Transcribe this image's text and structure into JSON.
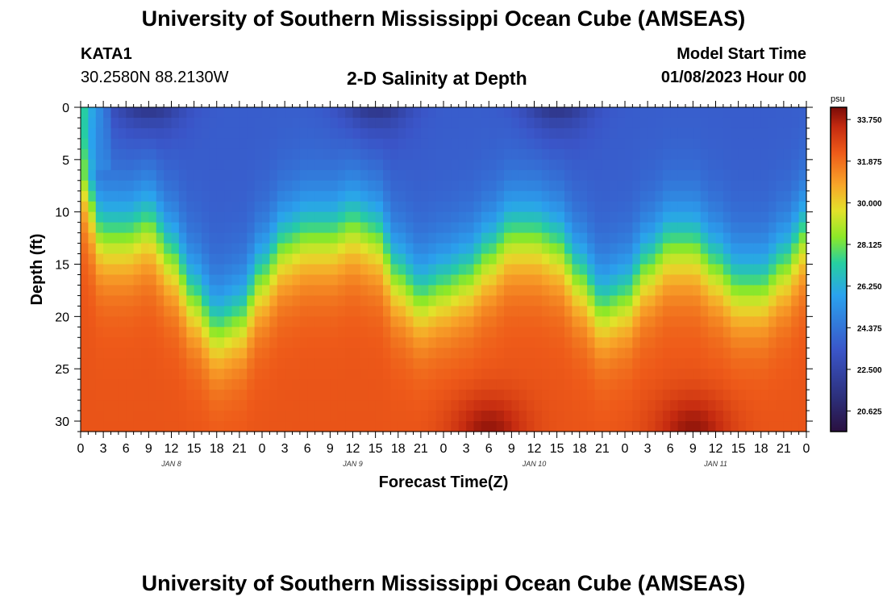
{
  "page": {
    "title": "University of Southern Mississippi Ocean Cube (AMSEAS)",
    "title_repeat": "University of Southern Mississippi Ocean Cube (AMSEAS)",
    "station": "KATA1",
    "coordinates": "30.2580N  88.2130W",
    "subtitle": "2-D Salinity at Depth",
    "model_start_label": "Model Start Time",
    "model_start_value": "01/08/2023 Hour 00"
  },
  "chart_data": {
    "type": "heatmap",
    "title": "2-D Salinity at Depth",
    "xlabel": "Forecast Time(Z)",
    "ylabel": "Depth (ft)",
    "x_range_hours": [
      0,
      96
    ],
    "y_range_ft": [
      0,
      31
    ],
    "x_tick_labels": [
      "0",
      "3",
      "6",
      "9",
      "12",
      "15",
      "18",
      "21",
      "0",
      "3",
      "6",
      "9",
      "12",
      "15",
      "18",
      "21",
      "0",
      "3",
      "6",
      "9",
      "12",
      "15",
      "18",
      "21",
      "0",
      "3",
      "6",
      "9",
      "12",
      "15",
      "18",
      "21",
      "0"
    ],
    "y_ticks": [
      0,
      5,
      10,
      15,
      20,
      25,
      30
    ],
    "date_labels": [
      {
        "label": "JAN 8",
        "hour": 12
      },
      {
        "label": "JAN 9",
        "hour": 36
      },
      {
        "label": "JAN 10",
        "hour": 60
      },
      {
        "label": "JAN 11",
        "hour": 84
      }
    ],
    "colorbar": {
      "unit": "psu",
      "min": 19.7,
      "max": 34.3,
      "tick_labels": [
        "33.750",
        "31.875",
        "30.000",
        "28.125",
        "26.250",
        "24.375",
        "22.500",
        "20.625"
      ],
      "tick_values": [
        33.75,
        31.875,
        30.0,
        28.125,
        26.25,
        24.375,
        22.5,
        20.625
      ]
    },
    "halocline_depth_ft": {
      "hours": [
        0,
        3,
        6,
        9,
        12,
        15,
        18,
        21,
        24,
        27,
        30,
        33,
        36,
        39,
        42,
        45,
        48,
        51,
        54,
        57,
        60,
        63,
        66,
        69,
        72,
        75,
        78,
        81,
        84,
        87,
        90,
        93,
        96
      ],
      "values": [
        6,
        12,
        12,
        11,
        14,
        18,
        21,
        20,
        16,
        13,
        12,
        12,
        11,
        12,
        16,
        18,
        17,
        16,
        14,
        12,
        12,
        13,
        16,
        19,
        18,
        15,
        13,
        13,
        15,
        17,
        17,
        15,
        12
      ]
    },
    "surface_minimum_hours": [
      9,
      39,
      63
    ],
    "bottom_maximum_hours": [
      54,
      81
    ]
  }
}
